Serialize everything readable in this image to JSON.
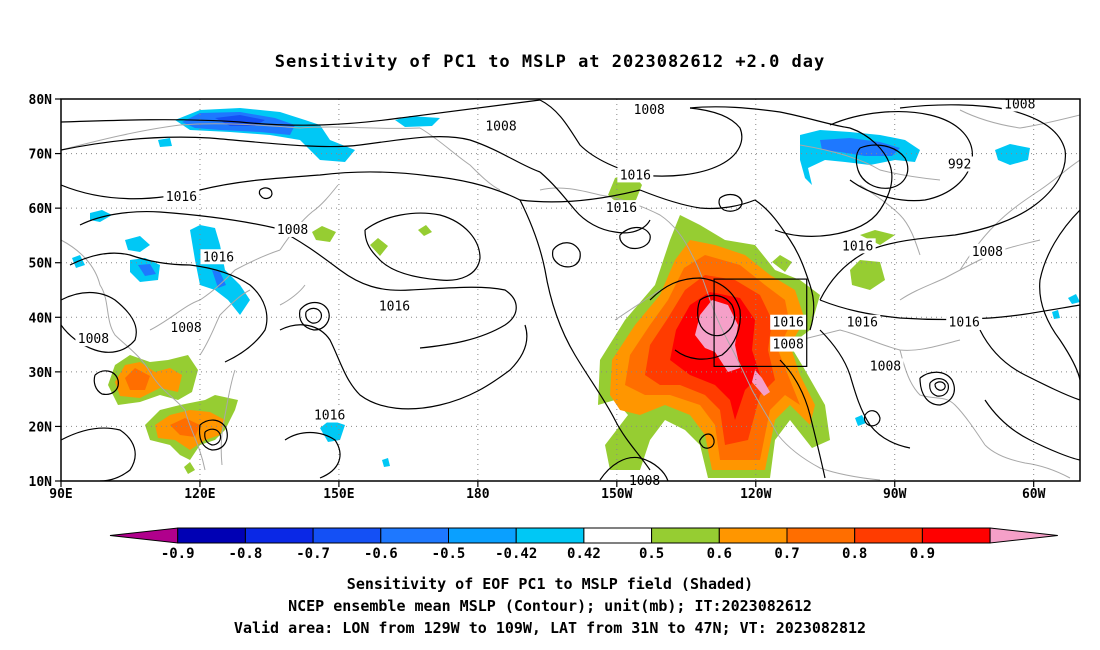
{
  "title": "Sensitivity of PC1 to MSLP at 2023082612 +2.0 day",
  "axes": {
    "lat_labels": [
      "80N",
      "70N",
      "60N",
      "50N",
      "40N",
      "30N",
      "20N",
      "10N"
    ],
    "lon_labels": [
      "90E",
      "120E",
      "150E",
      "180",
      "150W",
      "120W",
      "90W",
      "60W"
    ]
  },
  "contours": [
    {
      "label": "1008",
      "lon": -175,
      "lat": 75
    },
    {
      "label": "1016",
      "lon": 116,
      "lat": 62
    },
    {
      "label": "1008",
      "lon": 140,
      "lat": 56
    },
    {
      "label": "1016",
      "lon": 124,
      "lat": 51
    },
    {
      "label": "1008",
      "lon": 117,
      "lat": 38
    },
    {
      "label": "1008",
      "lon": 97,
      "lat": 36
    },
    {
      "label": "1016",
      "lon": 162,
      "lat": 42
    },
    {
      "label": "1016",
      "lon": 148,
      "lat": 22
    },
    {
      "label": "1008",
      "lon": -143,
      "lat": 78
    },
    {
      "label": "1016",
      "lon": -146,
      "lat": 66
    },
    {
      "label": "1016",
      "lon": -149,
      "lat": 60
    },
    {
      "label": "1008",
      "lon": -63,
      "lat": 79
    },
    {
      "label": "992",
      "lon": -76,
      "lat": 68
    },
    {
      "label": "1016",
      "lon": -98,
      "lat": 53
    },
    {
      "label": "1008",
      "lon": -70,
      "lat": 52
    },
    {
      "label": "1016",
      "lon": -113,
      "lat": 39
    },
    {
      "label": "1008",
      "lon": -113,
      "lat": 35
    },
    {
      "label": "1016",
      "lon": -97,
      "lat": 39
    },
    {
      "label": "1016",
      "lon": -75,
      "lat": 39
    },
    {
      "label": "1008",
      "lon": -92,
      "lat": 31
    },
    {
      "label": "1008",
      "lon": -144,
      "lat": 10
    }
  ],
  "valid_area": {
    "lon_min": -129,
    "lon_max": -109,
    "lat_min": 31,
    "lat_max": 47
  },
  "colorbar": {
    "labels": [
      "-0.9",
      "-0.8",
      "-0.7",
      "-0.6",
      "-0.5",
      "-0.42",
      "0.42",
      "0.5",
      "0.6",
      "0.7",
      "0.8",
      "0.9"
    ],
    "colors": [
      "#b0008c",
      "#0000b4",
      "#0a28e6",
      "#1450f5",
      "#1e78ff",
      "#0aa0ff",
      "#00c8f5",
      "#ffffff",
      "#96cd32",
      "#ff9600",
      "#ff6e00",
      "#ff3c00",
      "#ff0000",
      "#f5a0c8"
    ]
  },
  "caption": {
    "line1": "Sensitivity of EOF PC1 to MSLP field (Shaded)",
    "line2": "NCEP ensemble mean MSLP (Contour); unit(mb); IT:2023082612",
    "line3": "Valid area: LON from 129W to 109W, LAT from 31N to 47N; VT: 2023082812"
  }
}
